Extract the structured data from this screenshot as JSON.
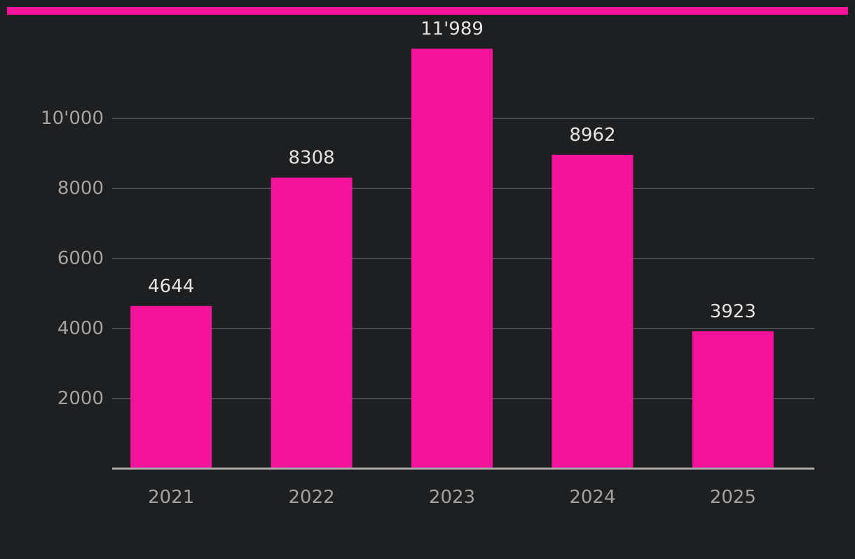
{
  "colors": {
    "background": "#1e1f21",
    "accent": "#f5139b",
    "bar": "#f5139b",
    "gridline": "#5a5b5e",
    "tick_text": "#a3a3a3",
    "value_text": "#e4e4e4"
  },
  "chart_data": {
    "type": "bar",
    "categories": [
      "2021",
      "2022",
      "2023",
      "2024",
      "2025"
    ],
    "values": [
      4644,
      8308,
      11989,
      8962,
      3923
    ],
    "value_labels": [
      "4644",
      "8308",
      "11'989",
      "8962",
      "3923"
    ],
    "y_ticks": [
      2000,
      4000,
      6000,
      8000,
      10000
    ],
    "y_tick_labels": [
      "2000",
      "4000",
      "6000",
      "8000",
      "10'000"
    ],
    "ylim": [
      0,
      12000
    ],
    "grid": true,
    "legend": "none"
  }
}
